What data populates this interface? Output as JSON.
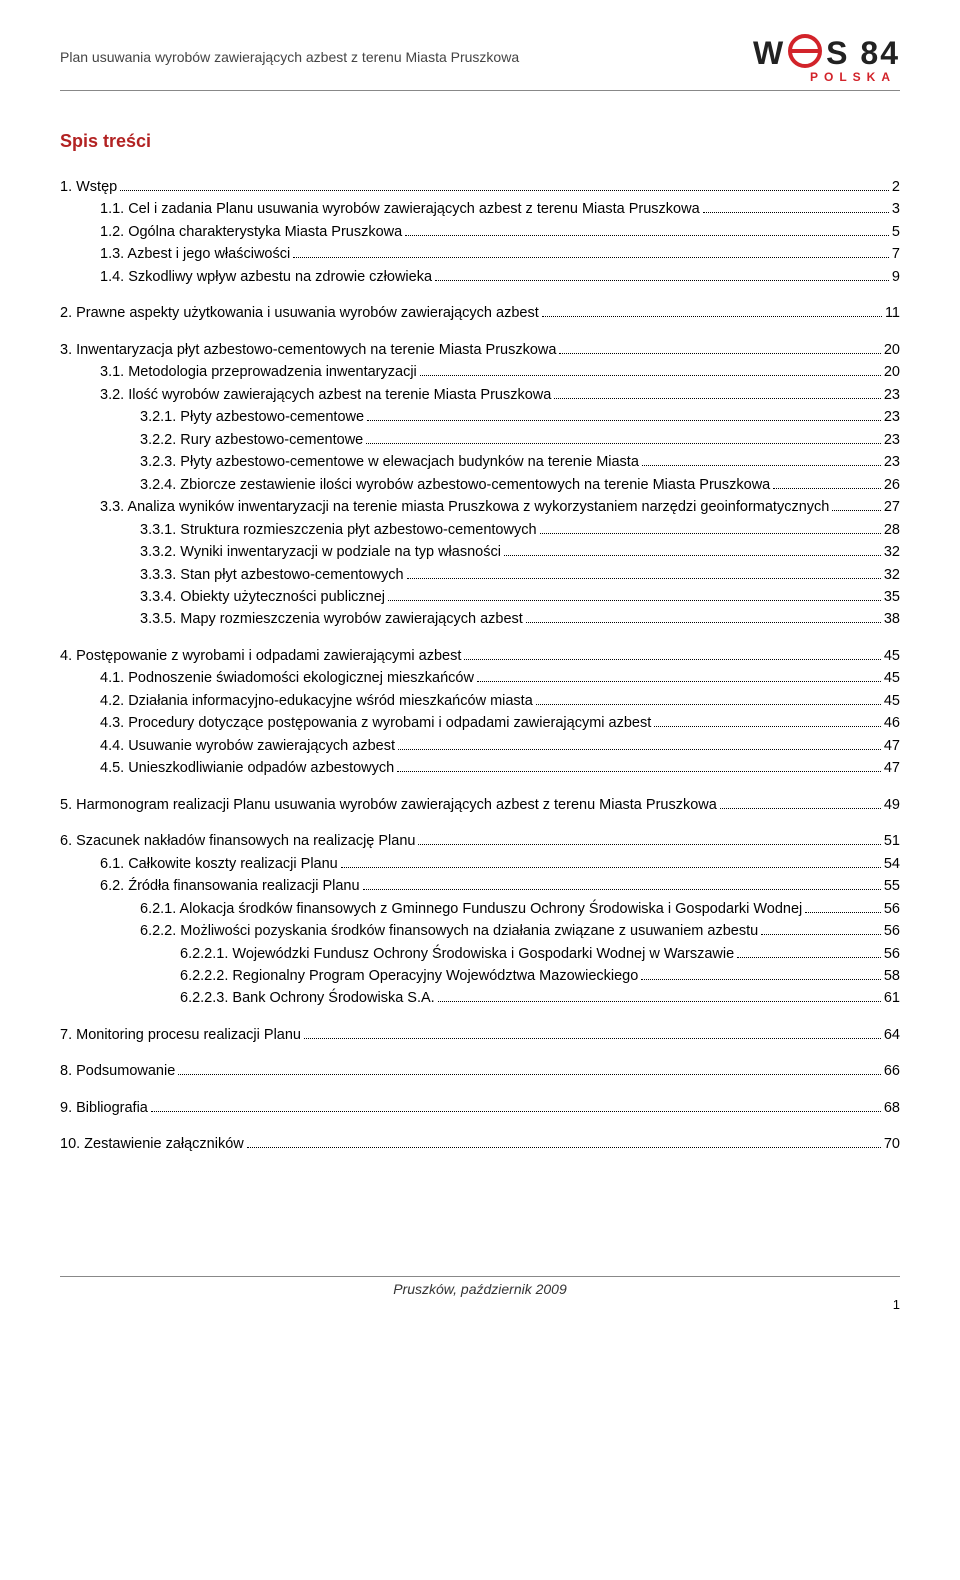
{
  "header": {
    "doc_title": "Plan usuwania wyrobów zawierających azbest z terenu Miasta Pruszkowa",
    "logo_left": "W",
    "logo_right": "S 84",
    "logo_sub": "POLSKA"
  },
  "toc_title": "Spis treści",
  "toc": [
    {
      "level": 0,
      "label": "1.   Wstęp",
      "page": "2"
    },
    {
      "level": 1,
      "label": "1.1. Cel i zadania Planu usuwania wyrobów zawierających azbest z terenu Miasta Pruszkowa",
      "page": "3"
    },
    {
      "level": 1,
      "label": "1.2. Ogólna charakterystyka Miasta Pruszkowa",
      "page": "5"
    },
    {
      "level": 1,
      "label": "1.3. Azbest i jego właściwości",
      "page": "7"
    },
    {
      "level": 1,
      "label": "1.4. Szkodliwy wpływ azbestu na zdrowie człowieka",
      "page": "9"
    },
    {
      "level": 0,
      "label": "2.   Prawne aspekty użytkowania i usuwania wyrobów zawierających azbest",
      "page": "11"
    },
    {
      "level": 0,
      "label": "3.   Inwentaryzacja płyt azbestowo-cementowych na terenie Miasta Pruszkowa",
      "page": "20"
    },
    {
      "level": 1,
      "label": "3.1. Metodologia przeprowadzenia inwentaryzacji",
      "page": "20"
    },
    {
      "level": 1,
      "label": "3.2. Ilość wyrobów zawierających azbest na terenie Miasta Pruszkowa",
      "page": "23"
    },
    {
      "level": 2,
      "label": "3.2.1. Płyty azbestowo-cementowe",
      "page": "23"
    },
    {
      "level": 2,
      "label": "3.2.2. Rury azbestowo-cementowe",
      "page": "23"
    },
    {
      "level": 2,
      "label": "3.2.3. Płyty azbestowo-cementowe w elewacjach budynków na terenie Miasta",
      "page": "23"
    },
    {
      "level": 2,
      "label": "3.2.4. Zbiorcze zestawienie ilości wyrobów azbestowo-cementowych na terenie Miasta Pruszkowa",
      "page": "26"
    },
    {
      "level": 1,
      "label": "3.3. Analiza wyników inwentaryzacji na terenie miasta Pruszkowa z wykorzystaniem narzędzi geoinformatycznych",
      "page": "27"
    },
    {
      "level": 2,
      "label": "3.3.1. Struktura rozmieszczenia płyt azbestowo-cementowych",
      "page": "28"
    },
    {
      "level": 2,
      "label": "3.3.2. Wyniki inwentaryzacji w podziale na typ własności",
      "page": "32"
    },
    {
      "level": 2,
      "label": "3.3.3. Stan płyt azbestowo-cementowych",
      "page": "32"
    },
    {
      "level": 2,
      "label": "3.3.4. Obiekty użyteczności publicznej",
      "page": "35"
    },
    {
      "level": 2,
      "label": "3.3.5. Mapy rozmieszczenia wyrobów zawierających azbest",
      "page": "38"
    },
    {
      "level": 0,
      "label": "4.   Postępowanie z wyrobami i odpadami zawierającymi azbest",
      "page": "45"
    },
    {
      "level": 1,
      "label": "4.1. Podnoszenie świadomości ekologicznej mieszkańców",
      "page": "45"
    },
    {
      "level": 1,
      "label": "4.2. Działania informacyjno-edukacyjne wśród mieszkańców miasta",
      "page": "45"
    },
    {
      "level": 1,
      "label": "4.3. Procedury dotyczące postępowania z wyrobami i odpadami zawierającymi azbest",
      "page": "46"
    },
    {
      "level": 1,
      "label": "4.4. Usuwanie wyrobów zawierających azbest",
      "page": "47"
    },
    {
      "level": 1,
      "label": "4.5. Unieszkodliwianie odpadów azbestowych",
      "page": "47"
    },
    {
      "level": 0,
      "label": "5.   Harmonogram realizacji Planu usuwania wyrobów zawierających azbest z terenu Miasta Pruszkowa",
      "page": "49"
    },
    {
      "level": 0,
      "label": "6.   Szacunek nakładów finansowych na realizację Planu",
      "page": "51"
    },
    {
      "level": 1,
      "label": "6.1. Całkowite koszty realizacji Planu",
      "page": "54"
    },
    {
      "level": 1,
      "label": "6.2. Źródła finansowania realizacji Planu",
      "page": "55"
    },
    {
      "level": 2,
      "label": "6.2.1. Alokacja środków finansowych z Gminnego Funduszu Ochrony Środowiska i Gospodarki Wodnej",
      "page": "56"
    },
    {
      "level": 2,
      "label": "6.2.2. Możliwości pozyskania środków finansowych na działania związane z usuwaniem azbestu",
      "page": "56"
    },
    {
      "level": 3,
      "label": "6.2.2.1. Wojewódzki Fundusz Ochrony Środowiska i Gospodarki Wodnej w Warszawie",
      "page": "56"
    },
    {
      "level": 3,
      "label": "6.2.2.2. Regionalny Program Operacyjny Województwa Mazowieckiego",
      "page": "58"
    },
    {
      "level": 3,
      "label": "6.2.2.3. Bank Ochrony Środowiska S.A.",
      "page": "61"
    },
    {
      "level": 0,
      "label": "7.   Monitoring procesu realizacji Planu",
      "page": "64"
    },
    {
      "level": 0,
      "label": "8.   Podsumowanie",
      "page": "66"
    },
    {
      "level": 0,
      "label": "9.   Bibliografia",
      "page": "68"
    },
    {
      "level": 0,
      "label": "10.  Zestawienie załączników",
      "page": "70"
    }
  ],
  "footer": {
    "text": "Pruszków, październik 2009",
    "page_num": "1"
  },
  "style": {
    "title_color": "#b22222",
    "logo_accent": "#d2232a",
    "text_color": "#000000",
    "font_size_body": 14.5,
    "font_size_title": 18
  }
}
